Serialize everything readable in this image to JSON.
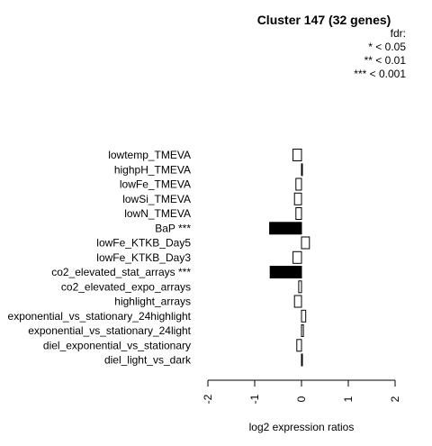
{
  "chart_data": {
    "type": "bar",
    "orientation": "horizontal",
    "title": "Cluster 147 (32 genes)",
    "xlabel": "log2 expression ratios",
    "ylabel": "",
    "xlim": [
      -2,
      2
    ],
    "xticks": [
      "-2",
      "-1",
      "0",
      "1",
      "2"
    ],
    "legend": {
      "title": "fdr:",
      "entries": [
        "* < 0.05",
        "** < 0.01",
        "*** < 0.001"
      ],
      "position": "top-right"
    },
    "categories": [
      "lowtemp_TMEVA",
      "highpH_TMEVA",
      "lowFe_TMEVA",
      "lowSi_TMEVA",
      "lowN_TMEVA",
      "BaP ***",
      "lowFe_KTKB_Day5",
      "lowFe_KTKB_Day3",
      "co2_elevated_stat_arrays ***",
      "co2_elevated_expo_arrays",
      "highlight_arrays",
      "exponential_vs_stationary_24highlight",
      "exponential_vs_stationary_24light",
      "diel_exponential_vs_stationary",
      "diel_light_vs_dark"
    ],
    "values": [
      -0.18,
      0.02,
      -0.12,
      -0.15,
      -0.12,
      -0.68,
      0.17,
      -0.18,
      -0.67,
      -0.06,
      -0.15,
      0.09,
      0.04,
      -0.1,
      0.02
    ],
    "significant": [
      false,
      false,
      false,
      false,
      false,
      true,
      false,
      false,
      true,
      false,
      false,
      false,
      false,
      false,
      false
    ],
    "colors": {
      "significant": "#000000",
      "normal": "#ffffff",
      "stroke": "#000000"
    }
  }
}
